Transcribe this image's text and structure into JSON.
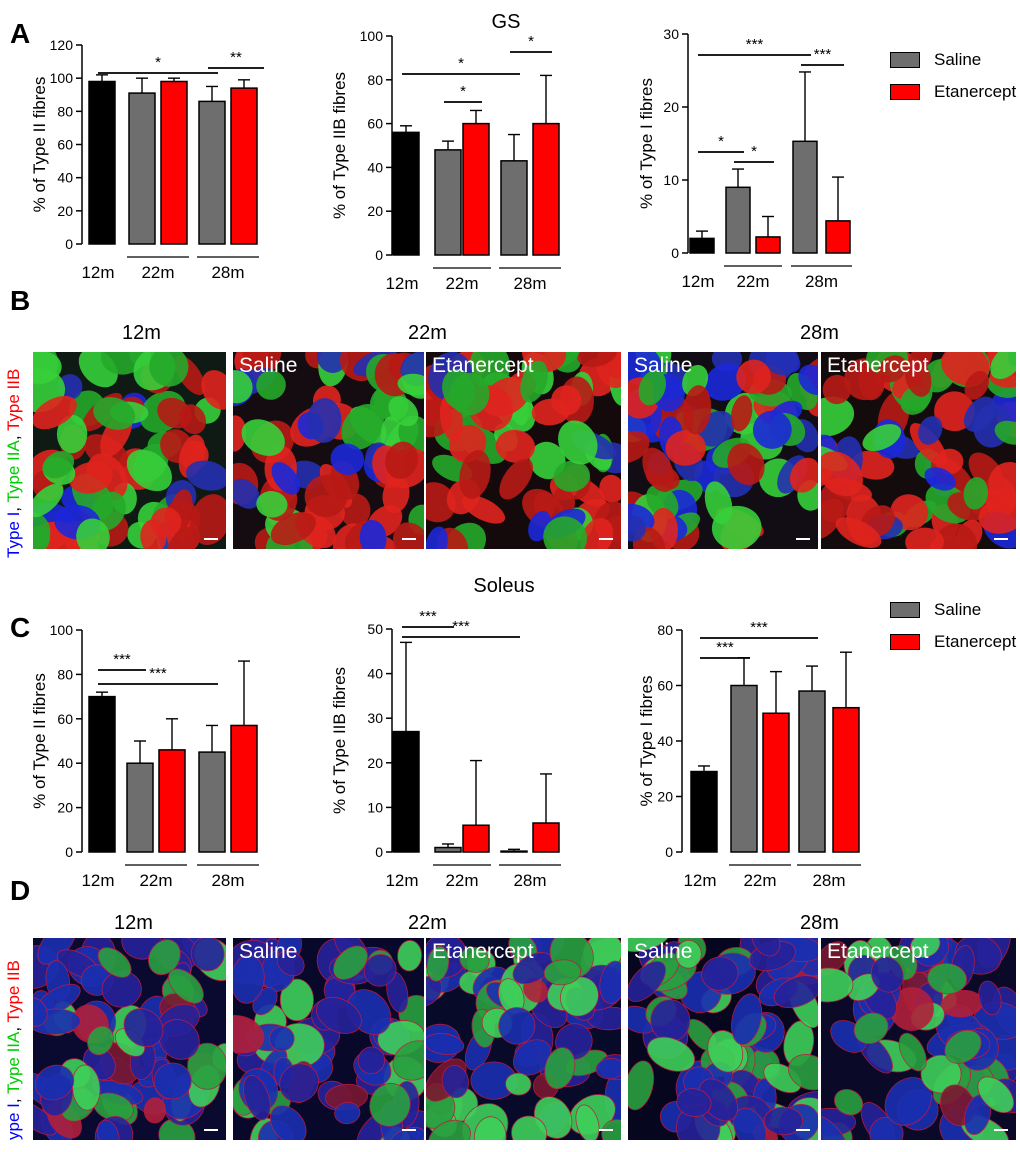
{
  "panels": {
    "A": "A",
    "B": "B",
    "C": "C",
    "D": "D"
  },
  "titles": {
    "gs": "GS",
    "soleus": "Soleus"
  },
  "legend": {
    "saline": "Saline",
    "etanercept": "Etanercept",
    "saline_color": "#6e6e6e",
    "etanercept_color": "#ff0000"
  },
  "colors": {
    "black": "#000000",
    "grey": "#6e6e6e",
    "red": "#ff0000"
  },
  "micro_labels": {
    "saline": "Saline",
    "etanercept": "Etanercept",
    "age_12": "12m",
    "age_22": "22m",
    "age_28": "28m"
  },
  "stain_label": {
    "part1": "Type I",
    "sep1": ", ",
    "part2": "Type IIA",
    "sep2": ", ",
    "part3": "Type IIB",
    "part1_d": "ype I",
    "color1": "#0000ff",
    "color2": "#00cc00",
    "color3": "#ff0000"
  },
  "chart_data": [
    {
      "type": "bar",
      "title": "",
      "ylabel": "% of Type II fibres",
      "ylim": [
        0,
        120
      ],
      "yticks": [
        0,
        20,
        40,
        60,
        80,
        100,
        120
      ],
      "groups": [
        "12m",
        "22m",
        "28m"
      ],
      "bars": [
        {
          "group": "12m",
          "series": "12m",
          "value": 98,
          "err": 4
        },
        {
          "group": "22m",
          "series": "Saline",
          "value": 91,
          "err": 9
        },
        {
          "group": "22m",
          "series": "Etanercept",
          "value": 98,
          "err": 2
        },
        {
          "group": "28m",
          "series": "Saline",
          "value": 86,
          "err": 9
        },
        {
          "group": "28m",
          "series": "Etanercept",
          "value": 94,
          "err": 5
        }
      ],
      "significance": [
        {
          "from": 0,
          "to": 3,
          "label": "*"
        },
        {
          "from": 3,
          "to": 4,
          "label": "**"
        }
      ]
    },
    {
      "type": "bar",
      "title": "GS",
      "ylabel": "% of Type IIB fibres",
      "ylim": [
        0,
        100
      ],
      "yticks": [
        0,
        20,
        40,
        60,
        80,
        100
      ],
      "groups": [
        "12m",
        "22m",
        "28m"
      ],
      "bars": [
        {
          "group": "12m",
          "series": "12m",
          "value": 56,
          "err": 3
        },
        {
          "group": "22m",
          "series": "Saline",
          "value": 48,
          "err": 4
        },
        {
          "group": "22m",
          "series": "Etanercept",
          "value": 60,
          "err": 6
        },
        {
          "group": "28m",
          "series": "Saline",
          "value": 43,
          "err": 12
        },
        {
          "group": "28m",
          "series": "Etanercept",
          "value": 60,
          "err": 22
        }
      ],
      "significance": [
        {
          "from": 0,
          "to": 3,
          "label": "*"
        },
        {
          "from": 1,
          "to": 2,
          "label": "*"
        },
        {
          "from": 3,
          "to": 4,
          "label": "*"
        }
      ]
    },
    {
      "type": "bar",
      "title": "",
      "ylabel": "% of Type I fibres",
      "ylim": [
        0,
        30
      ],
      "yticks": [
        0,
        10,
        20,
        30
      ],
      "groups": [
        "12m",
        "22m",
        "28m"
      ],
      "bars": [
        {
          "group": "12m",
          "series": "12m",
          "value": 2,
          "err": 1
        },
        {
          "group": "22m",
          "series": "Saline",
          "value": 9,
          "err": 2.5
        },
        {
          "group": "22m",
          "series": "Etanercept",
          "value": 2.2,
          "err": 2.8
        },
        {
          "group": "28m",
          "series": "Saline",
          "value": 15.3,
          "err": 9.5
        },
        {
          "group": "28m",
          "series": "Etanercept",
          "value": 4.4,
          "err": 6
        }
      ],
      "significance": [
        {
          "from": 0,
          "to": 3,
          "label": "***"
        },
        {
          "from": 3,
          "to": 4,
          "label": "***"
        },
        {
          "from": 0,
          "to": 1,
          "label": "*"
        },
        {
          "from": 1,
          "to": 2,
          "label": "*"
        }
      ]
    },
    {
      "type": "bar",
      "title": "",
      "ylabel": "% of Type II fibres",
      "ylim": [
        0,
        100
      ],
      "yticks": [
        0,
        20,
        40,
        60,
        80,
        100
      ],
      "groups": [
        "12m",
        "22m",
        "28m"
      ],
      "bars": [
        {
          "group": "12m",
          "series": "12m",
          "value": 70,
          "err": 2
        },
        {
          "group": "22m",
          "series": "Saline",
          "value": 40,
          "err": 10
        },
        {
          "group": "22m",
          "series": "Etanercept",
          "value": 46,
          "err": 14
        },
        {
          "group": "28m",
          "series": "Saline",
          "value": 45,
          "err": 12
        },
        {
          "group": "28m",
          "series": "Etanercept",
          "value": 57,
          "err": 29
        }
      ],
      "significance": [
        {
          "from": 0,
          "to": 1,
          "label": "***"
        },
        {
          "from": 0,
          "to": 3,
          "label": "***"
        }
      ]
    },
    {
      "type": "bar",
      "title": "Soleus",
      "ylabel": "% of Type IIB fibres",
      "ylim": [
        0,
        50
      ],
      "yticks": [
        0,
        10,
        20,
        30,
        40,
        50
      ],
      "groups": [
        "12m",
        "22m",
        "28m"
      ],
      "bars": [
        {
          "group": "12m",
          "series": "12m",
          "value": 27,
          "err": 20
        },
        {
          "group": "22m",
          "series": "Saline",
          "value": 1,
          "err": 0.8
        },
        {
          "group": "22m",
          "series": "Etanercept",
          "value": 6,
          "err": 14.5
        },
        {
          "group": "28m",
          "series": "Saline",
          "value": 0.2,
          "err": 0.4
        },
        {
          "group": "28m",
          "series": "Etanercept",
          "value": 6.5,
          "err": 11
        }
      ],
      "significance": [
        {
          "from": 0,
          "to": 1,
          "label": "***"
        },
        {
          "from": 0,
          "to": 3,
          "label": "***"
        }
      ]
    },
    {
      "type": "bar",
      "title": "",
      "ylabel": "% of Type I fibres",
      "ylim": [
        0,
        80
      ],
      "yticks": [
        0,
        20,
        40,
        60,
        80
      ],
      "yticklabels": [
        "0",
        "20",
        "40",
        "60",
        "80"
      ],
      "groups": [
        "12m",
        "22m",
        "28m"
      ],
      "bars": [
        {
          "group": "12m",
          "series": "12m",
          "value": 29,
          "err": 2
        },
        {
          "group": "22m",
          "series": "Saline",
          "value": 60,
          "err": 10
        },
        {
          "group": "22m",
          "series": "Etanercept",
          "value": 50,
          "err": 15
        },
        {
          "group": "28m",
          "series": "Saline",
          "value": 58,
          "err": 9
        },
        {
          "group": "28m",
          "series": "Etanercept",
          "value": 52,
          "err": 20
        }
      ],
      "significance": [
        {
          "from": 0,
          "to": 1,
          "label": "***"
        },
        {
          "from": 0,
          "to": 3,
          "label": "***"
        }
      ]
    }
  ]
}
